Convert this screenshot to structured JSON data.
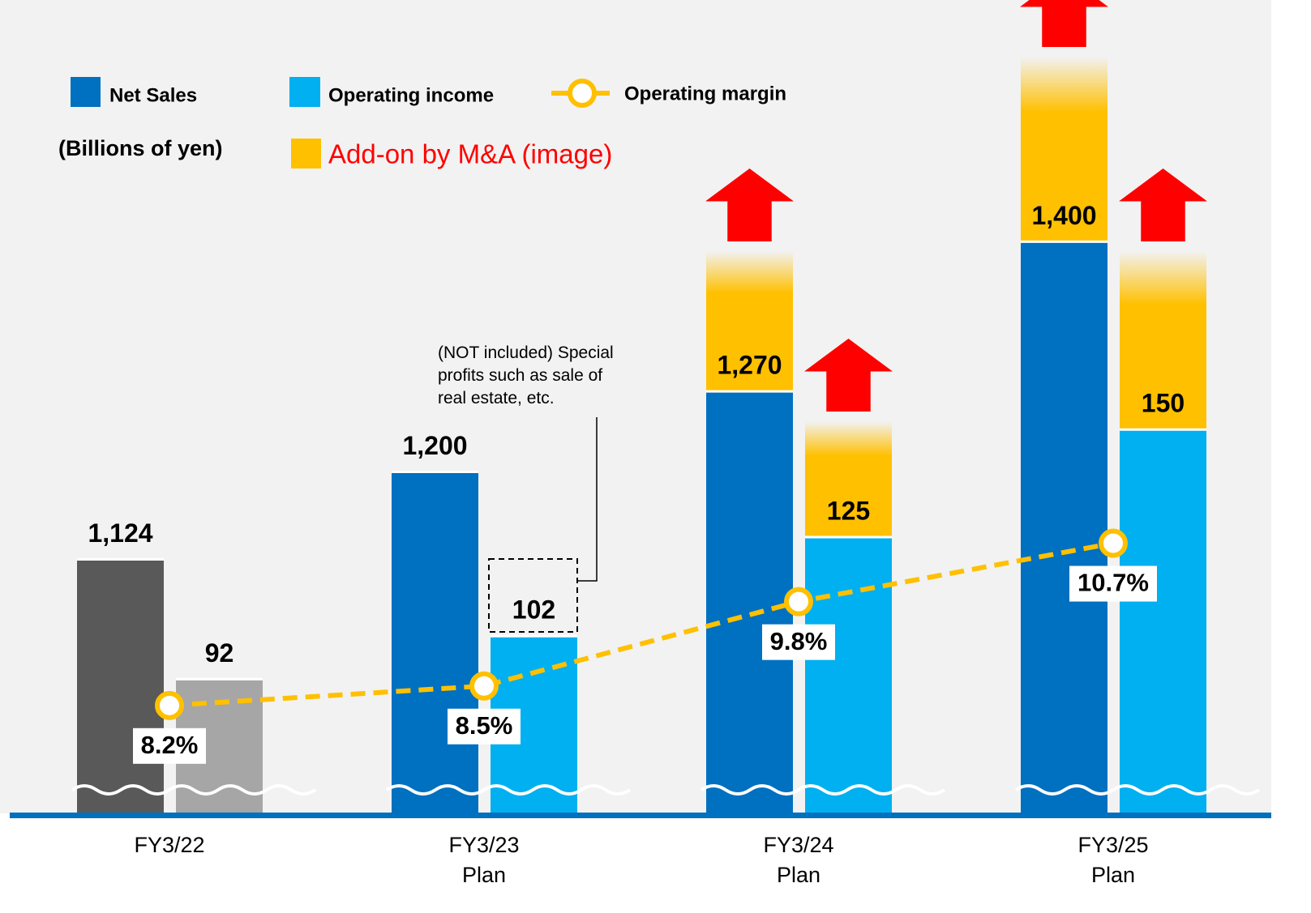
{
  "chart_data": {
    "type": "bar",
    "subtitle": "(Billions of yen)",
    "categories": [
      "FY3/22",
      "FY3/23\nPlan",
      "FY3/24\nPlan",
      "FY3/25\nPlan"
    ],
    "series": [
      {
        "name": "Net Sales",
        "color": "#0070c0",
        "colors": [
          "#595959",
          "#0070c0",
          "#0070c0",
          "#0070c0"
        ],
        "values": [
          1124,
          1200,
          1270,
          1400
        ],
        "value_labels": [
          "1,124",
          "1,200",
          "1,270",
          "1,400"
        ],
        "ylim": [
          904,
          1420
        ]
      },
      {
        "name": "Operating income",
        "color": "#00b0f0",
        "colors": [
          "#a6a6a6",
          "#00b0f0",
          "#00b0f0",
          "#00b0f0"
        ],
        "values": [
          92,
          102,
          125,
          150
        ],
        "value_labels": [
          "92",
          "102",
          "125",
          "150"
        ],
        "ylim": [
          61,
          199
        ]
      },
      {
        "name": "Operating margin",
        "type": "line",
        "color": "#ffc000",
        "values": [
          8.2,
          8.5,
          9.8,
          10.7
        ],
        "value_labels": [
          "8.2%",
          "8.5%",
          "9.8%",
          "10.7%"
        ],
        "ylim": [
          6.55,
          15.7
        ]
      }
    ],
    "addon": {
      "name": "Add-on by M&A (image)",
      "color": "#ffc000"
    },
    "annotation": "(NOT included) Special\nprofits such as sale of\nreal estate, etc."
  }
}
